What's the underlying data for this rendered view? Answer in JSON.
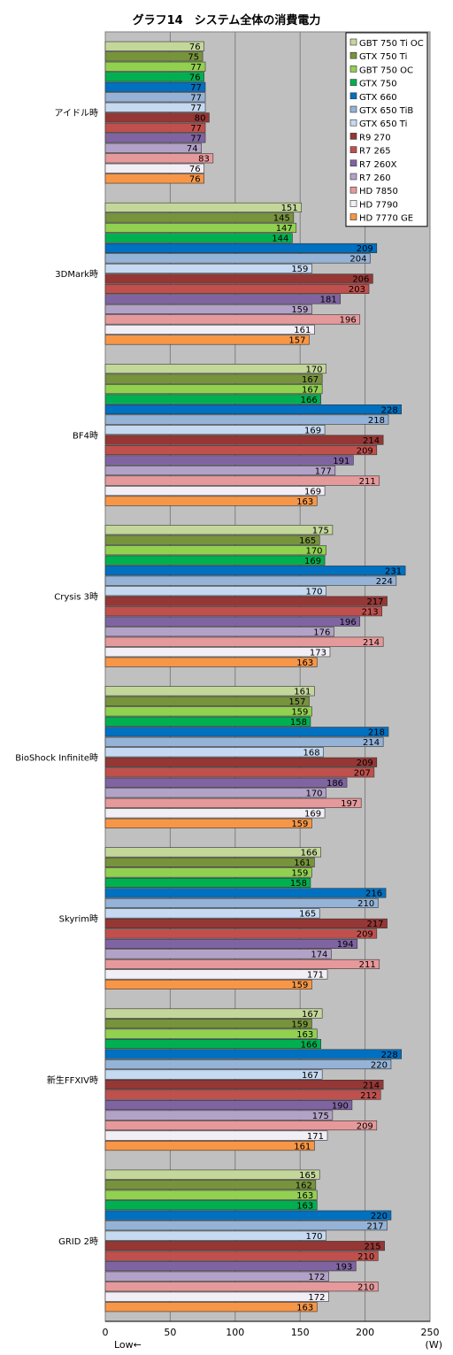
{
  "chart_data": {
    "type": "bar",
    "orientation": "horizontal",
    "title": "グラフ14　システム全体の消費電力",
    "xlim": [
      0,
      250
    ],
    "xticks": [
      0,
      50,
      100,
      150,
      200,
      250
    ],
    "x_unit_label": "(W)",
    "x_direction_label": "Low←",
    "grid": true,
    "legend_position": "top-right",
    "categories": [
      "アイドル時",
      "3DMark時",
      "BF4時",
      "Crysis 3時",
      "BioShock Infinite時",
      "Skyrim時",
      "新生FFXIV時",
      "GRID 2時"
    ],
    "series": [
      {
        "name": "GBT 750 Ti OC",
        "color": "#c4d79b",
        "values": [
          76,
          151,
          170,
          175,
          161,
          166,
          167,
          165
        ]
      },
      {
        "name": "GTX 750 Ti",
        "color": "#77933c",
        "values": [
          75,
          145,
          167,
          165,
          157,
          161,
          159,
          162
        ]
      },
      {
        "name": "GBT 750 OC",
        "color": "#92d050",
        "values": [
          77,
          147,
          167,
          170,
          159,
          159,
          163,
          163
        ]
      },
      {
        "name": "GTX 750",
        "color": "#00b050",
        "values": [
          76,
          144,
          166,
          169,
          158,
          158,
          166,
          163
        ]
      },
      {
        "name": "GTX 660",
        "color": "#0070c0",
        "values": [
          77,
          209,
          228,
          231,
          218,
          216,
          228,
          220
        ]
      },
      {
        "name": "GTX 650 TiB",
        "color": "#95b3d7",
        "values": [
          77,
          204,
          218,
          224,
          214,
          210,
          220,
          217
        ]
      },
      {
        "name": "GTX 650 Ti",
        "color": "#c5d9f1",
        "values": [
          77,
          159,
          169,
          170,
          168,
          165,
          167,
          170
        ]
      },
      {
        "name": "R9 270",
        "color": "#953735",
        "values": [
          80,
          206,
          214,
          217,
          209,
          217,
          214,
          215
        ]
      },
      {
        "name": "R7 265",
        "color": "#c0504d",
        "values": [
          77,
          203,
          209,
          213,
          207,
          209,
          212,
          210
        ]
      },
      {
        "name": "R7 260X",
        "color": "#8064a2",
        "values": [
          77,
          181,
          191,
          196,
          186,
          194,
          190,
          193
        ]
      },
      {
        "name": "R7 260",
        "color": "#b3a2c7",
        "values": [
          74,
          159,
          177,
          176,
          170,
          174,
          175,
          172
        ]
      },
      {
        "name": "HD 7850",
        "color": "#e6999b",
        "values": [
          83,
          196,
          211,
          214,
          197,
          211,
          209,
          210
        ]
      },
      {
        "name": "HD 7790",
        "color": "#f2eef6",
        "values": [
          76,
          161,
          169,
          173,
          169,
          171,
          171,
          172
        ]
      },
      {
        "name": "HD 7770 GE",
        "color": "#f79646",
        "values": [
          76,
          157,
          163,
          163,
          159,
          159,
          161,
          163
        ]
      }
    ]
  }
}
